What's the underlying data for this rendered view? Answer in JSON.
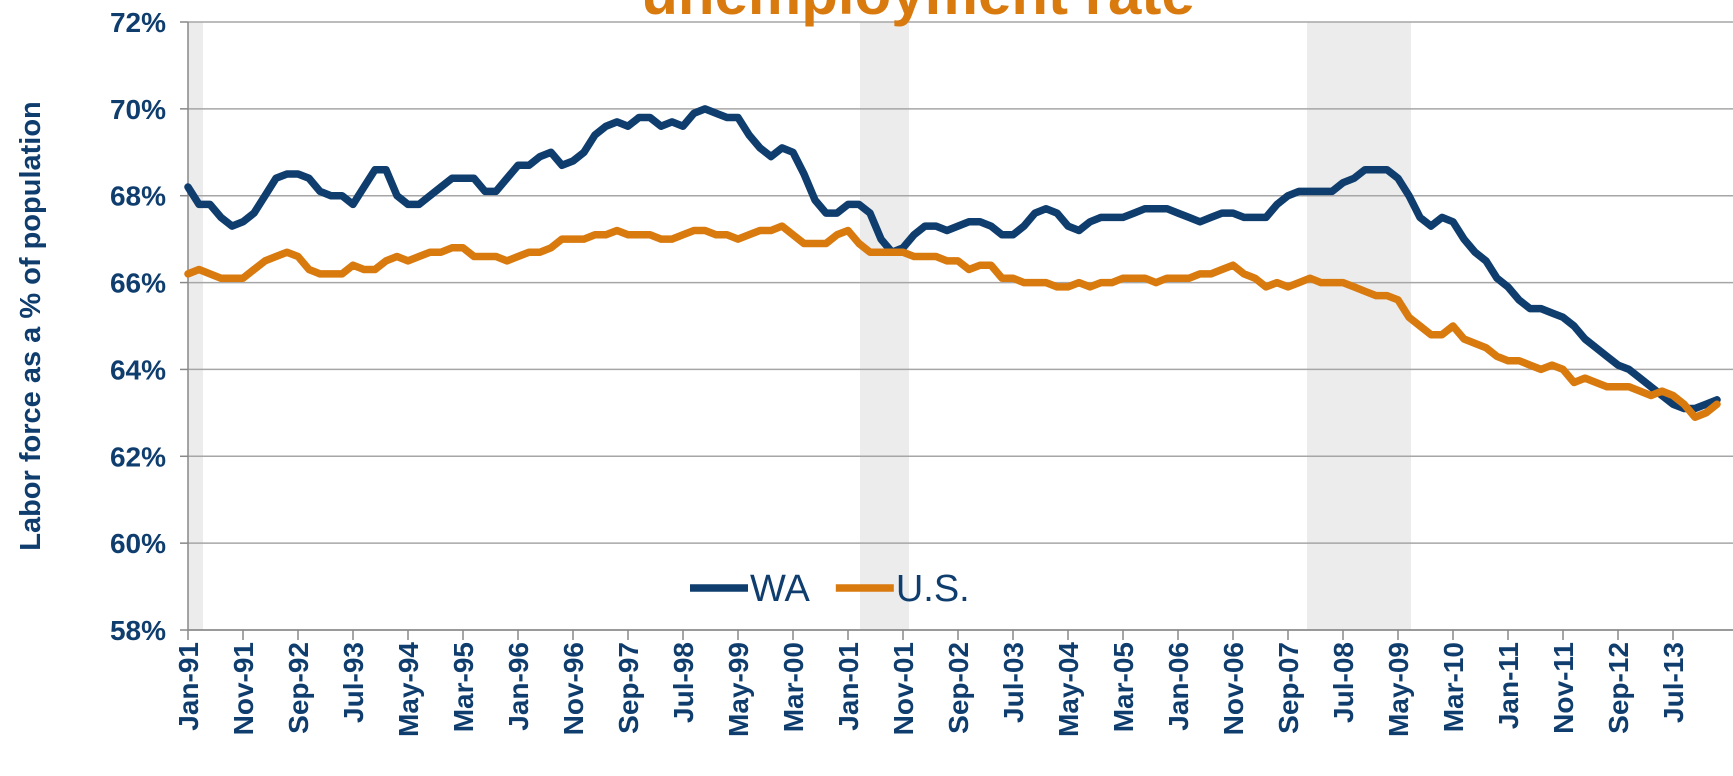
{
  "chart_data": {
    "type": "line",
    "title": "unemployment rate",
    "y_label": "Labor force as a % of population",
    "ylim": [
      58,
      72
    ],
    "yticks": [
      {
        "value": 58,
        "label": "58%"
      },
      {
        "value": 60,
        "label": "60%"
      },
      {
        "value": 62,
        "label": "62%"
      },
      {
        "value": 64,
        "label": "64%"
      },
      {
        "value": 66,
        "label": "66%"
      },
      {
        "value": 68,
        "label": "68%"
      },
      {
        "value": 70,
        "label": "70%"
      },
      {
        "value": 72,
        "label": "72%"
      }
    ],
    "grid": true,
    "legend": "lower center",
    "categories": [
      "Jan-91",
      null,
      null,
      null,
      null,
      "Nov-91",
      null,
      null,
      null,
      null,
      "Sep-92",
      null,
      null,
      null,
      null,
      "Jul-93",
      null,
      null,
      null,
      null,
      "May-94",
      null,
      null,
      null,
      null,
      "Mar-95",
      null,
      null,
      null,
      null,
      "Jan-96",
      null,
      null,
      null,
      null,
      "Nov-96",
      null,
      null,
      null,
      null,
      "Sep-97",
      null,
      null,
      null,
      null,
      "Jul-98",
      null,
      null,
      null,
      null,
      "May-99",
      null,
      null,
      null,
      null,
      "Mar-00",
      null,
      null,
      null,
      null,
      "Jan-01",
      null,
      null,
      null,
      null,
      "Nov-01",
      null,
      null,
      null,
      null,
      "Sep-02",
      null,
      null,
      null,
      null,
      "Jul-03",
      null,
      null,
      null,
      null,
      "May-04",
      null,
      null,
      null,
      null,
      "Mar-05",
      null,
      null,
      null,
      null,
      "Jan-06",
      null,
      null,
      null,
      null,
      "Nov-06",
      null,
      null,
      null,
      null,
      "Sep-07",
      null,
      null,
      null,
      null,
      "Jul-08",
      null,
      null,
      null,
      null,
      "May-09",
      null,
      null,
      null,
      null,
      "Mar-10",
      null,
      null,
      null,
      null,
      "Jan-11",
      null,
      null,
      null,
      null,
      "Nov-11",
      null,
      null,
      null,
      null,
      "Sep-12",
      null,
      null,
      null,
      null,
      "Jul-13",
      null,
      null,
      null,
      null
    ],
    "series": [
      {
        "name": "WA",
        "color": "#0e3d6e",
        "values": [
          68.2,
          67.8,
          67.8,
          67.5,
          67.3,
          67.4,
          67.6,
          68.0,
          68.4,
          68.5,
          68.5,
          68.4,
          68.1,
          68.0,
          68.0,
          67.8,
          68.2,
          68.6,
          68.6,
          68.0,
          67.8,
          67.8,
          68.0,
          68.2,
          68.4,
          68.4,
          68.4,
          68.1,
          68.1,
          68.4,
          68.7,
          68.7,
          68.9,
          69.0,
          68.7,
          68.8,
          69.0,
          69.4,
          69.6,
          69.7,
          69.6,
          69.8,
          69.8,
          69.6,
          69.7,
          69.6,
          69.9,
          70.0,
          69.9,
          69.8,
          69.8,
          69.4,
          69.1,
          68.9,
          69.1,
          69.0,
          68.5,
          67.9,
          67.6,
          67.6,
          67.8,
          67.8,
          67.6,
          67.0,
          66.7,
          66.8,
          67.1,
          67.3,
          67.3,
          67.2,
          67.3,
          67.4,
          67.4,
          67.3,
          67.1,
          67.1,
          67.3,
          67.6,
          67.7,
          67.6,
          67.3,
          67.2,
          67.4,
          67.5,
          67.5,
          67.5,
          67.6,
          67.7,
          67.7,
          67.7,
          67.6,
          67.5,
          67.4,
          67.5,
          67.6,
          67.6,
          67.5,
          67.5,
          67.5,
          67.8,
          68.0,
          68.1,
          68.1,
          68.1,
          68.1,
          68.3,
          68.4,
          68.6,
          68.6,
          68.6,
          68.4,
          68.0,
          67.5,
          67.3,
          67.5,
          67.4,
          67.0,
          66.7,
          66.5,
          66.1,
          65.9,
          65.6,
          65.4,
          65.4,
          65.3,
          65.2,
          65.0,
          64.7,
          64.5,
          64.3,
          64.1,
          64.0,
          63.8,
          63.6,
          63.4,
          63.2,
          63.1,
          63.1,
          63.2,
          63.3
        ]
      },
      {
        "name": "U.S.",
        "color": "#d97a0f",
        "values": [
          66.2,
          66.3,
          66.2,
          66.1,
          66.1,
          66.1,
          66.3,
          66.5,
          66.6,
          66.7,
          66.6,
          66.3,
          66.2,
          66.2,
          66.2,
          66.4,
          66.3,
          66.3,
          66.5,
          66.6,
          66.5,
          66.6,
          66.7,
          66.7,
          66.8,
          66.8,
          66.6,
          66.6,
          66.6,
          66.5,
          66.6,
          66.7,
          66.7,
          66.8,
          67.0,
          67.0,
          67.0,
          67.1,
          67.1,
          67.2,
          67.1,
          67.1,
          67.1,
          67.0,
          67.0,
          67.1,
          67.2,
          67.2,
          67.1,
          67.1,
          67.0,
          67.1,
          67.2,
          67.2,
          67.3,
          67.1,
          66.9,
          66.9,
          66.9,
          67.1,
          67.2,
          66.9,
          66.7,
          66.7,
          66.7,
          66.7,
          66.6,
          66.6,
          66.6,
          66.5,
          66.5,
          66.3,
          66.4,
          66.4,
          66.1,
          66.1,
          66.0,
          66.0,
          66.0,
          65.9,
          65.9,
          66.0,
          65.9,
          66.0,
          66.0,
          66.1,
          66.1,
          66.1,
          66.0,
          66.1,
          66.1,
          66.1,
          66.2,
          66.2,
          66.3,
          66.4,
          66.2,
          66.1,
          65.9,
          66.0,
          65.9,
          66.0,
          66.1,
          66.0,
          66.0,
          66.0,
          65.9,
          65.8,
          65.7,
          65.7,
          65.6,
          65.2,
          65.0,
          64.8,
          64.8,
          65.0,
          64.7,
          64.6,
          64.5,
          64.3,
          64.2,
          64.2,
          64.1,
          64.0,
          64.1,
          64.0,
          63.7,
          63.8,
          63.7,
          63.6,
          63.6,
          63.6,
          63.5,
          63.4,
          63.5,
          63.4,
          63.2,
          62.9,
          63.0,
          63.2
        ]
      }
    ]
  }
}
